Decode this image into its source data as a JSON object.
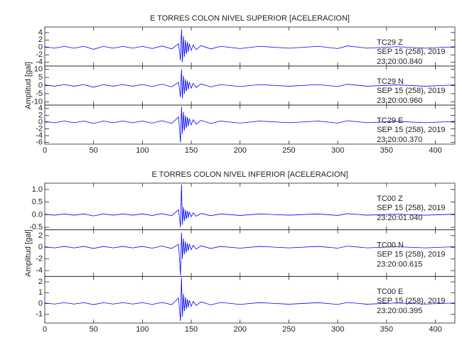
{
  "chart_data": [
    {
      "type": "line",
      "title": "E TORRES COLON NIVEL SUPERIOR [ACELERACION]",
      "ylabel": "Amplitud [gal]",
      "x": [
        0,
        10,
        20,
        30,
        40,
        50,
        60,
        70,
        80,
        90,
        100,
        110,
        120,
        130,
        137,
        139,
        140,
        141,
        142,
        143,
        144,
        145,
        146,
        147,
        148,
        150,
        152,
        155,
        160,
        170,
        180,
        200,
        220,
        250,
        280,
        300,
        310,
        330,
        360,
        390,
        420
      ],
      "xlim": [
        0,
        420
      ],
      "xticks": [
        0,
        50,
        100,
        150,
        200,
        250,
        300,
        350,
        400
      ],
      "series": [
        {
          "station": "TC29   Z",
          "date": "SEP 15 (258), 2019",
          "time": "23:20:00.840",
          "color": "#0000ff",
          "ylim": [
            -5,
            5.5
          ],
          "yticks": [
            -4,
            -2,
            0,
            2,
            4
          ],
          "values": [
            0.2,
            -0.2,
            0.3,
            -0.2,
            0.3,
            -0.5,
            0.3,
            -0.2,
            0.3,
            -0.2,
            0.3,
            -0.3,
            0.4,
            -0.4,
            1.0,
            -3.5,
            5.0,
            -4.0,
            3.0,
            -2.5,
            2.0,
            -1.8,
            1.5,
            -1.2,
            1.0,
            -0.8,
            0.7,
            -0.6,
            0.5,
            -0.4,
            0.3,
            -0.3,
            0.3,
            -0.2,
            0.3,
            -0.3,
            0.4,
            -0.2,
            0.2,
            -0.2,
            0.2
          ]
        },
        {
          "station": "TC29   N",
          "date": "SEP 15 (258), 2019",
          "time": "23:20:00.960",
          "color": "#0000ff",
          "ylim": [
            -12,
            12
          ],
          "yticks": [
            -10,
            -5,
            0,
            5,
            10
          ],
          "values": [
            0.4,
            -0.4,
            0.6,
            -0.4,
            0.6,
            -1,
            0.6,
            -0.4,
            0.6,
            -0.4,
            0.6,
            -0.6,
            0.8,
            -0.8,
            2,
            -7,
            10,
            -8,
            6,
            -5,
            4,
            -3.6,
            3,
            -2.4,
            2,
            -1.6,
            1.4,
            -1.2,
            1,
            -0.8,
            0.6,
            -0.6,
            0.6,
            -0.4,
            0.6,
            -0.6,
            0.8,
            -0.4,
            0.4,
            -0.4,
            0.4
          ]
        },
        {
          "station": "TC29   E",
          "date": "SEP 15 (258), 2019",
          "time": "23:20:00.370",
          "color": "#0000ff",
          "ylim": [
            -6.5,
            5
          ],
          "yticks": [
            -6,
            -4,
            -2,
            0,
            2,
            4
          ],
          "values": [
            0.2,
            -0.2,
            0.3,
            -0.2,
            0.3,
            -0.4,
            0.3,
            -0.2,
            0.3,
            -0.2,
            0.3,
            -0.3,
            0.4,
            -0.4,
            1.5,
            -6,
            4.5,
            -3.5,
            3,
            -2.5,
            2,
            -1.8,
            1.5,
            -1.2,
            1,
            -0.8,
            0.7,
            -0.6,
            0.5,
            -0.4,
            0.3,
            -0.3,
            0.3,
            -0.2,
            0.3,
            -0.3,
            0.4,
            -0.2,
            0.2,
            -0.2,
            0.2
          ]
        }
      ]
    },
    {
      "type": "line",
      "title": "E TORRES COLON NIVEL INFERIOR [ACELERACION]",
      "ylabel": "Amplitud [gal]",
      "x": [
        0,
        10,
        20,
        30,
        40,
        50,
        60,
        70,
        80,
        90,
        100,
        110,
        120,
        130,
        137,
        139,
        140,
        141,
        142,
        143,
        144,
        145,
        146,
        147,
        148,
        150,
        152,
        155,
        160,
        170,
        180,
        200,
        220,
        250,
        280,
        300,
        310,
        330,
        360,
        390,
        420
      ],
      "xlim": [
        0,
        420
      ],
      "xticks": [
        0,
        50,
        100,
        150,
        200,
        250,
        300,
        350,
        400
      ],
      "series": [
        {
          "station": "TC00   Z",
          "date": "SEP 15 (258), 2019",
          "time": "23:20:01.040",
          "color": "#0000ff",
          "ylim": [
            -0.6,
            1.25
          ],
          "yticks": [
            {
              "value": -0.5,
              "label": "-0.5"
            },
            {
              "value": 0,
              "label": "0.0"
            },
            {
              "value": 0.5,
              "label": "0.5"
            },
            {
              "value": 1,
              "label": "1.0"
            }
          ],
          "values": [
            0.02,
            -0.02,
            0.03,
            -0.02,
            0.03,
            -0.05,
            0.03,
            -0.02,
            0.03,
            -0.02,
            0.03,
            -0.03,
            0.04,
            -0.04,
            0.2,
            -0.5,
            1.2,
            -0.4,
            0.3,
            -0.25,
            0.2,
            -0.18,
            0.15,
            -0.12,
            0.1,
            -0.08,
            0.07,
            -0.06,
            0.05,
            -0.04,
            0.03,
            -0.03,
            0.03,
            -0.02,
            0.03,
            -0.03,
            0.04,
            -0.02,
            0.02,
            -0.02,
            0.02
          ]
        },
        {
          "station": "TC00   N",
          "date": "SEP 15 (258), 2019",
          "time": "23:20:00.615",
          "color": "#0000ff",
          "ylim": [
            -5,
            3
          ],
          "yticks": [
            -4,
            -2,
            0,
            2
          ],
          "values": [
            0.1,
            -0.1,
            0.15,
            -0.1,
            0.15,
            -0.2,
            0.15,
            -0.1,
            0.15,
            -0.1,
            0.15,
            -0.15,
            0.2,
            -0.2,
            0.5,
            -4.8,
            2.5,
            -2,
            1.5,
            -1.2,
            1,
            -0.9,
            0.7,
            -0.6,
            0.5,
            -0.4,
            0.35,
            -0.3,
            0.25,
            -0.2,
            0.15,
            -0.15,
            0.15,
            -0.1,
            0.15,
            -0.15,
            0.2,
            -0.1,
            0.1,
            -0.1,
            0.1
          ]
        },
        {
          "station": "TC00   E",
          "date": "SEP 15 (258), 2019",
          "time": "23:20:00.395",
          "color": "#0000ff",
          "ylim": [
            -1.8,
            2.5
          ],
          "yticks": [
            -1,
            0,
            1,
            2
          ],
          "values": [
            0.05,
            -0.05,
            0.08,
            -0.05,
            0.08,
            -0.1,
            0.08,
            -0.05,
            0.08,
            -0.05,
            0.08,
            -0.08,
            0.1,
            -0.1,
            0.5,
            -1.6,
            2.4,
            -1.2,
            0.9,
            -0.7,
            0.6,
            -0.5,
            0.4,
            -0.35,
            0.3,
            -0.25,
            0.2,
            -0.18,
            0.15,
            -0.12,
            0.1,
            -0.08,
            0.08,
            -0.06,
            0.08,
            -0.08,
            0.1,
            -0.06,
            0.05,
            -0.05,
            0.05
          ]
        }
      ]
    }
  ]
}
